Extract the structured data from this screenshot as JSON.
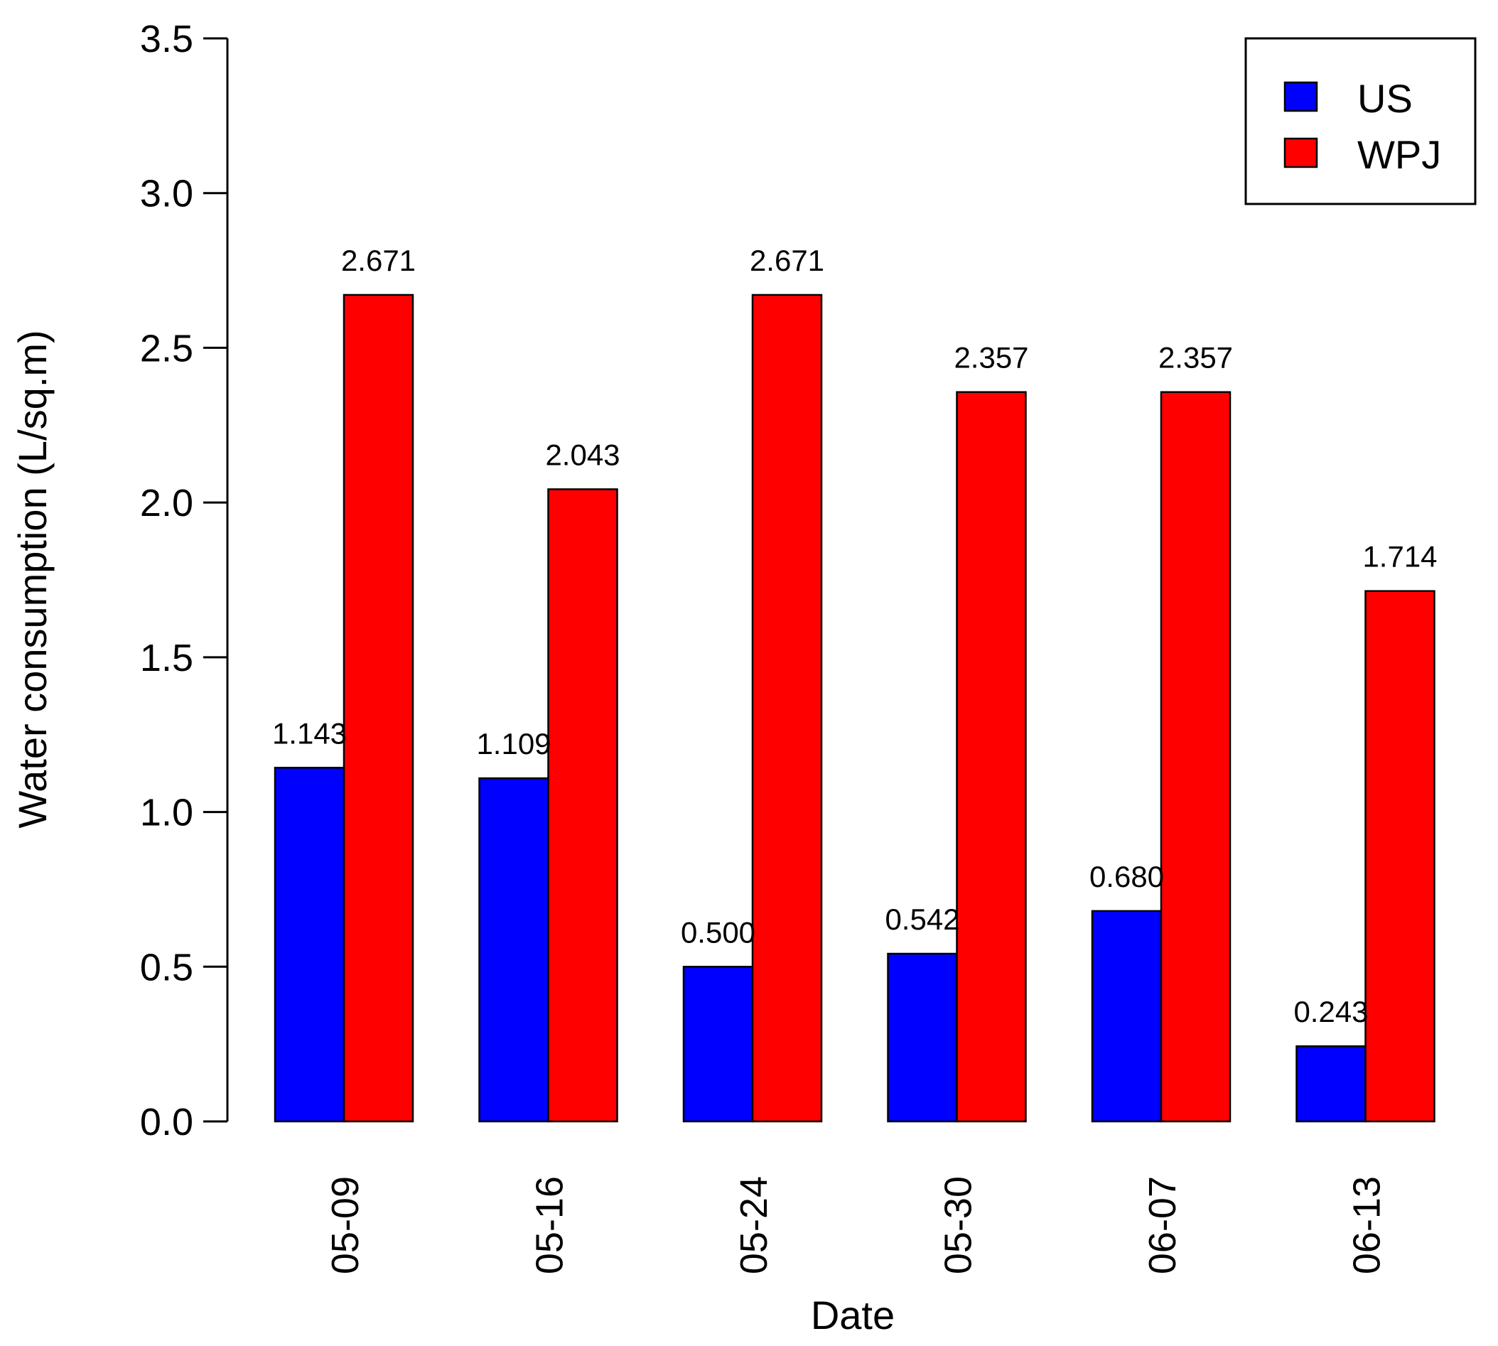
{
  "chart_data": {
    "type": "bar",
    "title": "",
    "xlabel": "Date",
    "ylabel": "Water consumption (L/sq.m)",
    "categories": [
      "05-09",
      "05-16",
      "05-24",
      "05-30",
      "06-07",
      "06-13"
    ],
    "series": [
      {
        "name": "US",
        "color": "#0000ff",
        "values": [
          1.143,
          1.109,
          0.5,
          0.542,
          0.68,
          0.243
        ],
        "labels": [
          "1.143",
          "1.109",
          "0.500",
          "0.542",
          "0.680",
          "0.243"
        ]
      },
      {
        "name": "WPJ",
        "color": "#ff0000",
        "values": [
          2.671,
          2.043,
          2.671,
          2.357,
          2.357,
          1.714
        ],
        "labels": [
          "2.671",
          "2.043",
          "2.671",
          "2.357",
          "2.357",
          "1.714"
        ]
      }
    ],
    "ylim": [
      0,
      3.5
    ],
    "yticks": [
      "0.0",
      "0.5",
      "1.0",
      "1.5",
      "2.0",
      "2.5",
      "3.0",
      "3.5"
    ],
    "grid": false,
    "legend_position": "top-right"
  }
}
